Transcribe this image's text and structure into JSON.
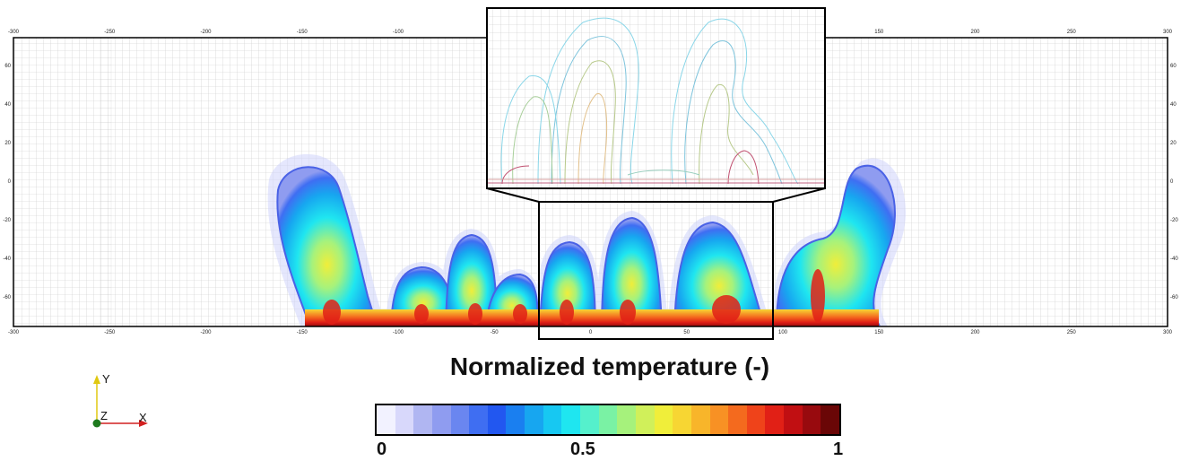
{
  "legend": {
    "title": "Normalized temperature (-)",
    "min_label": "0",
    "mid_label": "0.5",
    "max_label": "1",
    "colors": [
      "#f2f2ff",
      "#d8d8fb",
      "#b0b6f2",
      "#8f9cf0",
      "#6a86f0",
      "#3f6ef2",
      "#2257f0",
      "#1a7ff0",
      "#17a6f0",
      "#17c8f2",
      "#1fe6f0",
      "#55f0cc",
      "#7af2a4",
      "#a6f27c",
      "#d0f05a",
      "#f0ee3a",
      "#f7d633",
      "#f8b52a",
      "#f89124",
      "#f46a1e",
      "#ef431a",
      "#e12016",
      "#c10f12",
      "#980a0e",
      "#6a0606"
    ]
  },
  "axes": {
    "x_ticks": [
      "-300",
      "-250",
      "-200",
      "-150",
      "-100",
      "-50",
      "0",
      "50",
      "100",
      "150",
      "200",
      "250",
      "300"
    ],
    "y_ticks": [
      "60",
      "40",
      "20",
      "0",
      "-20",
      "-40",
      "-60"
    ],
    "x_label": "X",
    "y_label": "Y",
    "z_label": "Z"
  },
  "colors": {
    "frame": "#000000",
    "grid": "#c8c8c8",
    "x_axis": "#d22020",
    "y_axis": "#e0c810",
    "z_axis": "#1e7a1e"
  }
}
